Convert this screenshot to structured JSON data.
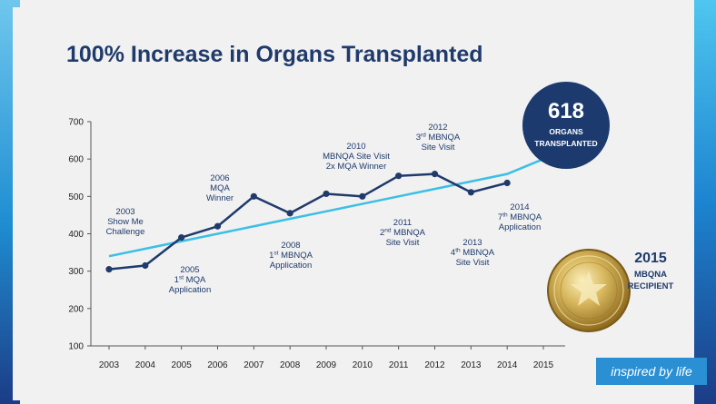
{
  "slide": {
    "title": "100% Increase in Organs Transplanted",
    "badge": {
      "value": "618",
      "line1": "ORGANS",
      "line2": "TRANSPLANTED"
    },
    "award": {
      "year": "2015",
      "line1": "MBQNA",
      "line2": "RECIPIENT"
    },
    "tagline": "inspired by life"
  },
  "chart_data": {
    "type": "line",
    "x": [
      "2003",
      "2004",
      "2005",
      "2006",
      "2007",
      "2008",
      "2009",
      "2010",
      "2011",
      "2012",
      "2013",
      "2014",
      "2015"
    ],
    "series": [
      {
        "values": [
          305,
          315,
          390,
          420,
          500,
          455,
          507,
          500,
          555,
          560,
          511,
          536,
          618
        ]
      },
      {
        "values": [
          340,
          360,
          380,
          400,
          420,
          440,
          460,
          480,
          500,
          520,
          540,
          560,
          600
        ]
      }
    ],
    "ylim": [
      100,
      700
    ],
    "yticks": [
      "100",
      "200",
      "300",
      "400",
      "500",
      "600",
      "700"
    ],
    "annotations": [
      {
        "x": "2003",
        "lines": [
          "2003",
          "Show Me",
          "Challenge"
        ]
      },
      {
        "x": "2005",
        "lines": [
          "2005",
          "1st MQA",
          "Application"
        ]
      },
      {
        "x": "2006",
        "lines": [
          "2006",
          "MQA",
          "Winner"
        ]
      },
      {
        "x": "2008",
        "lines": [
          "2008",
          "1st MBNQA",
          "Application"
        ]
      },
      {
        "x": "2010",
        "lines": [
          "2010",
          "MBNQA Site Visit",
          "2x MQA Winner"
        ]
      },
      {
        "x": "2011",
        "lines": [
          "2011",
          "2nd MBNQA",
          "Site Visit"
        ]
      },
      {
        "x": "2012",
        "lines": [
          "2012",
          "3rd MBNQA",
          "Site Visit"
        ]
      },
      {
        "x": "2013",
        "lines": [
          "2013",
          "4th MBNQA",
          "Site Visit"
        ]
      },
      {
        "x": "2014",
        "lines": [
          "2014",
          "7th MBNQA",
          "Application"
        ]
      }
    ],
    "colors": {
      "primary": "#1f3a6b",
      "trend": "#3bbfe6",
      "axis": "#555555"
    }
  }
}
